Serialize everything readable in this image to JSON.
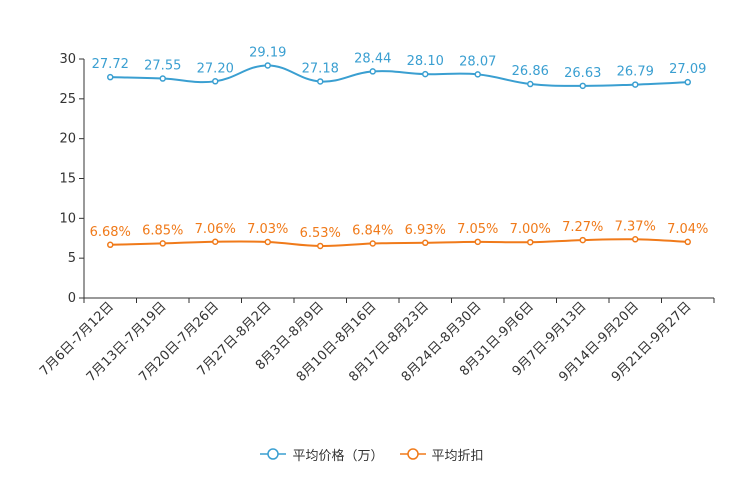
{
  "chart_data": {
    "type": "line",
    "categories": [
      "7月6日-7月12日",
      "7月13日-7月19日",
      "7月20日-7月26日",
      "7月27日-8月2日",
      "8月3日-8月9日",
      "8月10日-8月16日",
      "8月17日-8月23日",
      "8月24日-8月30日",
      "8月31日-9月6日",
      "9月7日-9月13日",
      "9月14日-9月20日",
      "9月21日-9月27日"
    ],
    "ylim": [
      0,
      30
    ],
    "yticks": [
      "0",
      "5",
      "10",
      "15",
      "20",
      "25",
      "30"
    ],
    "series": [
      {
        "name": "平均价格（万）",
        "color": "#3a9fd1",
        "values": [
          27.72,
          27.55,
          27.2,
          29.19,
          27.18,
          28.44,
          28.1,
          28.07,
          26.86,
          26.63,
          26.79,
          27.09
        ],
        "labels": [
          "27.72",
          "27.55",
          "27.20",
          "29.19",
          "27.18",
          "28.44",
          "28.10",
          "28.07",
          "26.86",
          "26.63",
          "26.79",
          "27.09"
        ]
      },
      {
        "name": "平均折扣",
        "color": "#f07a1a",
        "values": [
          6.68,
          6.85,
          7.06,
          7.03,
          6.53,
          6.84,
          6.93,
          7.05,
          7.0,
          7.27,
          7.37,
          7.04
        ],
        "labels": [
          "6.68%",
          "6.85%",
          "7.06%",
          "7.03%",
          "6.53%",
          "6.84%",
          "6.93%",
          "7.05%",
          "7.00%",
          "7.27%",
          "7.37%",
          "7.04%"
        ]
      }
    ]
  }
}
